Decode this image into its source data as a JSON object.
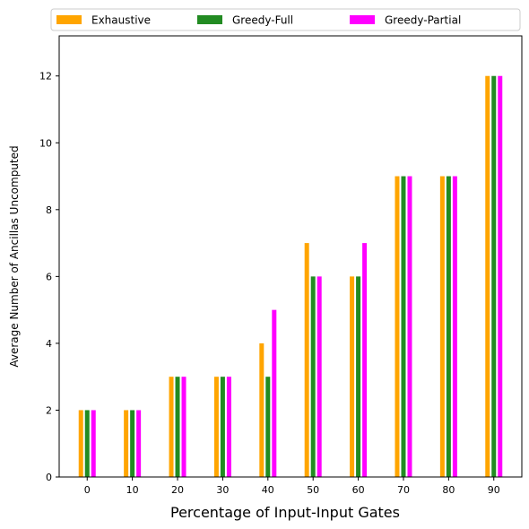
{
  "chart_data": {
    "type": "bar",
    "xlabel": "Percentage of Input-Input Gates",
    "ylabel": "Average Number of Ancillas Uncomputed",
    "categories": [
      "0",
      "10",
      "20",
      "30",
      "40",
      "50",
      "60",
      "70",
      "80",
      "90"
    ],
    "series": [
      {
        "name": "Exhaustive",
        "color": "#ffa500",
        "values": [
          2,
          2,
          3,
          3,
          4,
          7,
          6,
          9,
          9,
          12
        ]
      },
      {
        "name": "Greedy-Full",
        "color": "#228b22",
        "values": [
          2,
          2,
          3,
          3,
          3,
          6,
          6,
          9,
          9,
          12
        ]
      },
      {
        "name": "Greedy-Partial",
        "color": "#ff00ff",
        "values": [
          2,
          2,
          3,
          3,
          5,
          6,
          7,
          9,
          9,
          12
        ]
      }
    ],
    "yticks": [
      0,
      2,
      4,
      6,
      8,
      10,
      12
    ],
    "ylim": [
      0,
      13.2
    ],
    "legend_position": "top",
    "grid": false
  }
}
